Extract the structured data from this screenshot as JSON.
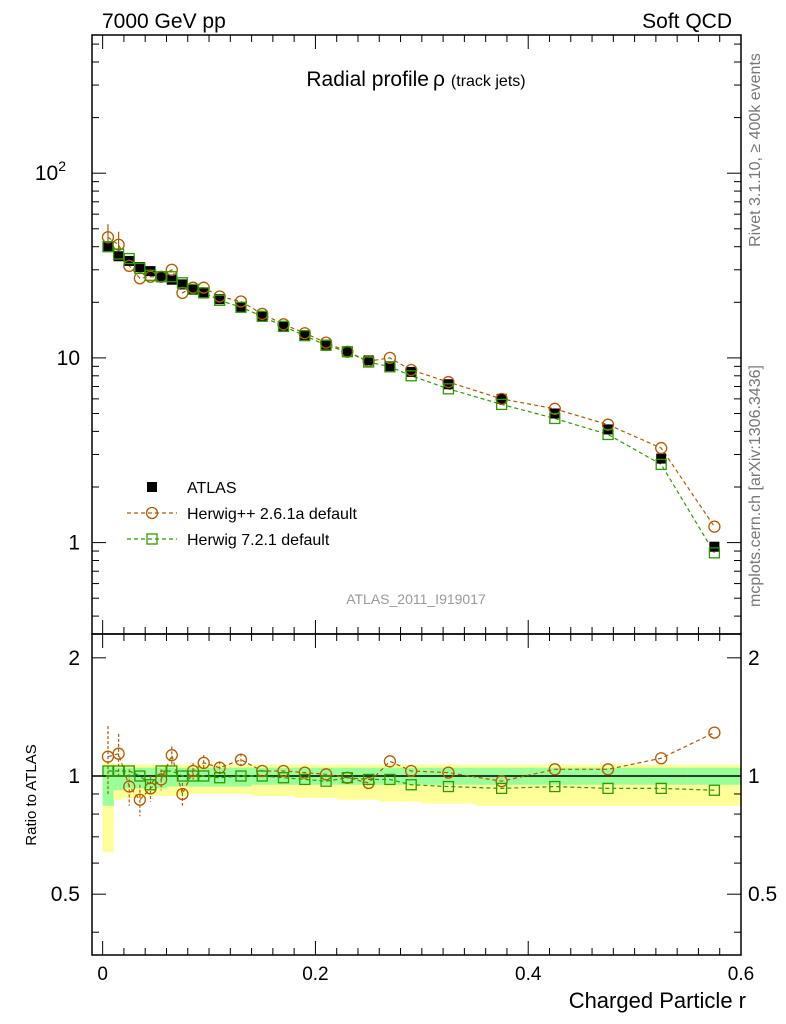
{
  "header": {
    "energy": "7000 GeV pp",
    "process": "Soft QCD"
  },
  "side_labels": {
    "rivet": "Rivet 3.1.10, ≥ 400k events",
    "source": "mcplots.cern.ch [arXiv:1306.3436]"
  },
  "colors": {
    "data": "#000000",
    "herwigpp": "#b35900",
    "herwig7": "#2e9900",
    "band_inner": "#99ff99",
    "band_outer": "#ffff99"
  },
  "chart_data": [
    {
      "type": "scatter",
      "panel": "main",
      "title": "Radial profile",
      "title_symbol": "ρ",
      "title_suffix": "(track jets)",
      "analysis": "ATLAS_2011_I919017",
      "xlim": [
        -0.01,
        0.6
      ],
      "ylim": [
        0.32,
        560
      ],
      "yscale": "log",
      "ytick_labels": [
        {
          "value": 1,
          "label": "1"
        },
        {
          "value": 10,
          "label": "10"
        },
        {
          "value": 100,
          "label": "10",
          "sup": "2"
        }
      ],
      "x": [
        0.005,
        0.015,
        0.025,
        0.035,
        0.045,
        0.055,
        0.065,
        0.075,
        0.085,
        0.095,
        0.11,
        0.13,
        0.15,
        0.17,
        0.19,
        0.21,
        0.23,
        0.25,
        0.27,
        0.29,
        0.325,
        0.375,
        0.425,
        0.475,
        0.525,
        0.575
      ],
      "series": [
        {
          "name": "ATLAS",
          "marker": "filled-square",
          "values": [
            40,
            35.5,
            33.5,
            31,
            29.5,
            27.5,
            26.5,
            25,
            23.5,
            22.5,
            20.8,
            18.8,
            16.8,
            14.9,
            13.3,
            11.8,
            10.8,
            9.7,
            9.0,
            8.4,
            7.2,
            6.0,
            5.0,
            4.1,
            2.85,
            0.95
          ]
        },
        {
          "name": "Herwig++ 2.6.1a default",
          "marker": "open-circle",
          "values": [
            45,
            41,
            31.5,
            27,
            27.5,
            27.5,
            30,
            22.5,
            24,
            24,
            21.5,
            20.2,
            17.3,
            15.2,
            13.6,
            12.1,
            10.8,
            9.6,
            10.0,
            8.6,
            7.4,
            6.0,
            5.3,
            4.35,
            3.25,
            1.22
          ]
        },
        {
          "name": "Herwig 7.2.1 default",
          "marker": "open-square",
          "values": [
            40,
            36.5,
            34.5,
            30.5,
            28,
            27.5,
            27.5,
            25.5,
            23.5,
            22.5,
            20.5,
            18.8,
            16.8,
            14.8,
            13.2,
            11.7,
            10.8,
            9.5,
            8.95,
            8.0,
            6.8,
            5.6,
            4.7,
            3.85,
            2.65,
            0.88
          ]
        }
      ]
    },
    {
      "type": "scatter",
      "panel": "ratio",
      "ylabel": "Ratio to ATLAS",
      "xlabel": "Charged Particle r",
      "xlim": [
        -0.01,
        0.6
      ],
      "ylim": [
        0.35,
        2.3
      ],
      "yscale": "log",
      "ytick_labels": [
        {
          "value": 0.5,
          "label": "0.5"
        },
        {
          "value": 1,
          "label": "1"
        },
        {
          "value": 2,
          "label": "2"
        }
      ],
      "xtick_labels": [
        {
          "value": 0,
          "label": "0"
        },
        {
          "value": 0.2,
          "label": "0.2"
        },
        {
          "value": 0.4,
          "label": "0.4"
        },
        {
          "value": 0.6,
          "label": "0.6"
        }
      ],
      "x": [
        0.005,
        0.015,
        0.025,
        0.035,
        0.045,
        0.055,
        0.065,
        0.075,
        0.085,
        0.095,
        0.11,
        0.13,
        0.15,
        0.17,
        0.19,
        0.21,
        0.23,
        0.25,
        0.27,
        0.29,
        0.325,
        0.375,
        0.425,
        0.475,
        0.525,
        0.575
      ],
      "series": [
        {
          "name": "Herwig++ 2.6.1a default",
          "marker": "open-circle",
          "values": [
            1.12,
            1.14,
            0.94,
            0.87,
            0.93,
            0.98,
            1.13,
            0.9,
            1.03,
            1.08,
            1.05,
            1.1,
            1.03,
            1.03,
            1.02,
            1.01,
            0.99,
            0.96,
            1.09,
            1.03,
            1.02,
            0.97,
            1.04,
            1.04,
            1.11,
            1.29
          ]
        },
        {
          "name": "Herwig 7.2.1 default",
          "marker": "open-square",
          "values": [
            1.03,
            1.03,
            1.03,
            1.0,
            0.95,
            1.03,
            1.03,
            1.0,
            1.0,
            1.0,
            0.99,
            1.0,
            1.0,
            0.99,
            0.98,
            0.97,
            0.99,
            0.98,
            0.98,
            0.95,
            0.94,
            0.93,
            0.94,
            0.93,
            0.93,
            0.92
          ]
        }
      ],
      "band_edges": [
        0,
        0.01,
        0.02,
        0.04,
        0.06,
        0.08,
        0.1,
        0.12,
        0.14,
        0.16,
        0.18,
        0.2,
        0.22,
        0.24,
        0.26,
        0.28,
        0.3,
        0.35,
        0.4,
        0.45,
        0.5,
        0.55,
        0.6
      ],
      "band_inner_lo": [
        0.84,
        0.92,
        0.93,
        0.93,
        0.94,
        0.94,
        0.94,
        0.94,
        0.95,
        0.95,
        0.95,
        0.95,
        0.95,
        0.95,
        0.95,
        0.95,
        0.95,
        0.95,
        0.95,
        0.95,
        0.95,
        0.95
      ],
      "band_inner_hi": [
        1.06,
        1.05,
        1.05,
        1.05,
        1.05,
        1.05,
        1.05,
        1.05,
        1.05,
        1.05,
        1.05,
        1.05,
        1.05,
        1.05,
        1.05,
        1.05,
        1.05,
        1.05,
        1.05,
        1.05,
        1.05,
        1.05
      ],
      "band_outer_lo": [
        0.64,
        0.87,
        0.88,
        0.89,
        0.89,
        0.9,
        0.9,
        0.9,
        0.89,
        0.89,
        0.88,
        0.88,
        0.87,
        0.87,
        0.86,
        0.86,
        0.85,
        0.84,
        0.84,
        0.84,
        0.84,
        0.84
      ],
      "band_outer_hi": [
        1.08,
        1.07,
        1.07,
        1.07,
        1.07,
        1.07,
        1.07,
        1.07,
        1.07,
        1.07,
        1.07,
        1.07,
        1.07,
        1.07,
        1.07,
        1.07,
        1.07,
        1.07,
        1.07,
        1.07,
        1.07,
        1.07
      ]
    }
  ]
}
